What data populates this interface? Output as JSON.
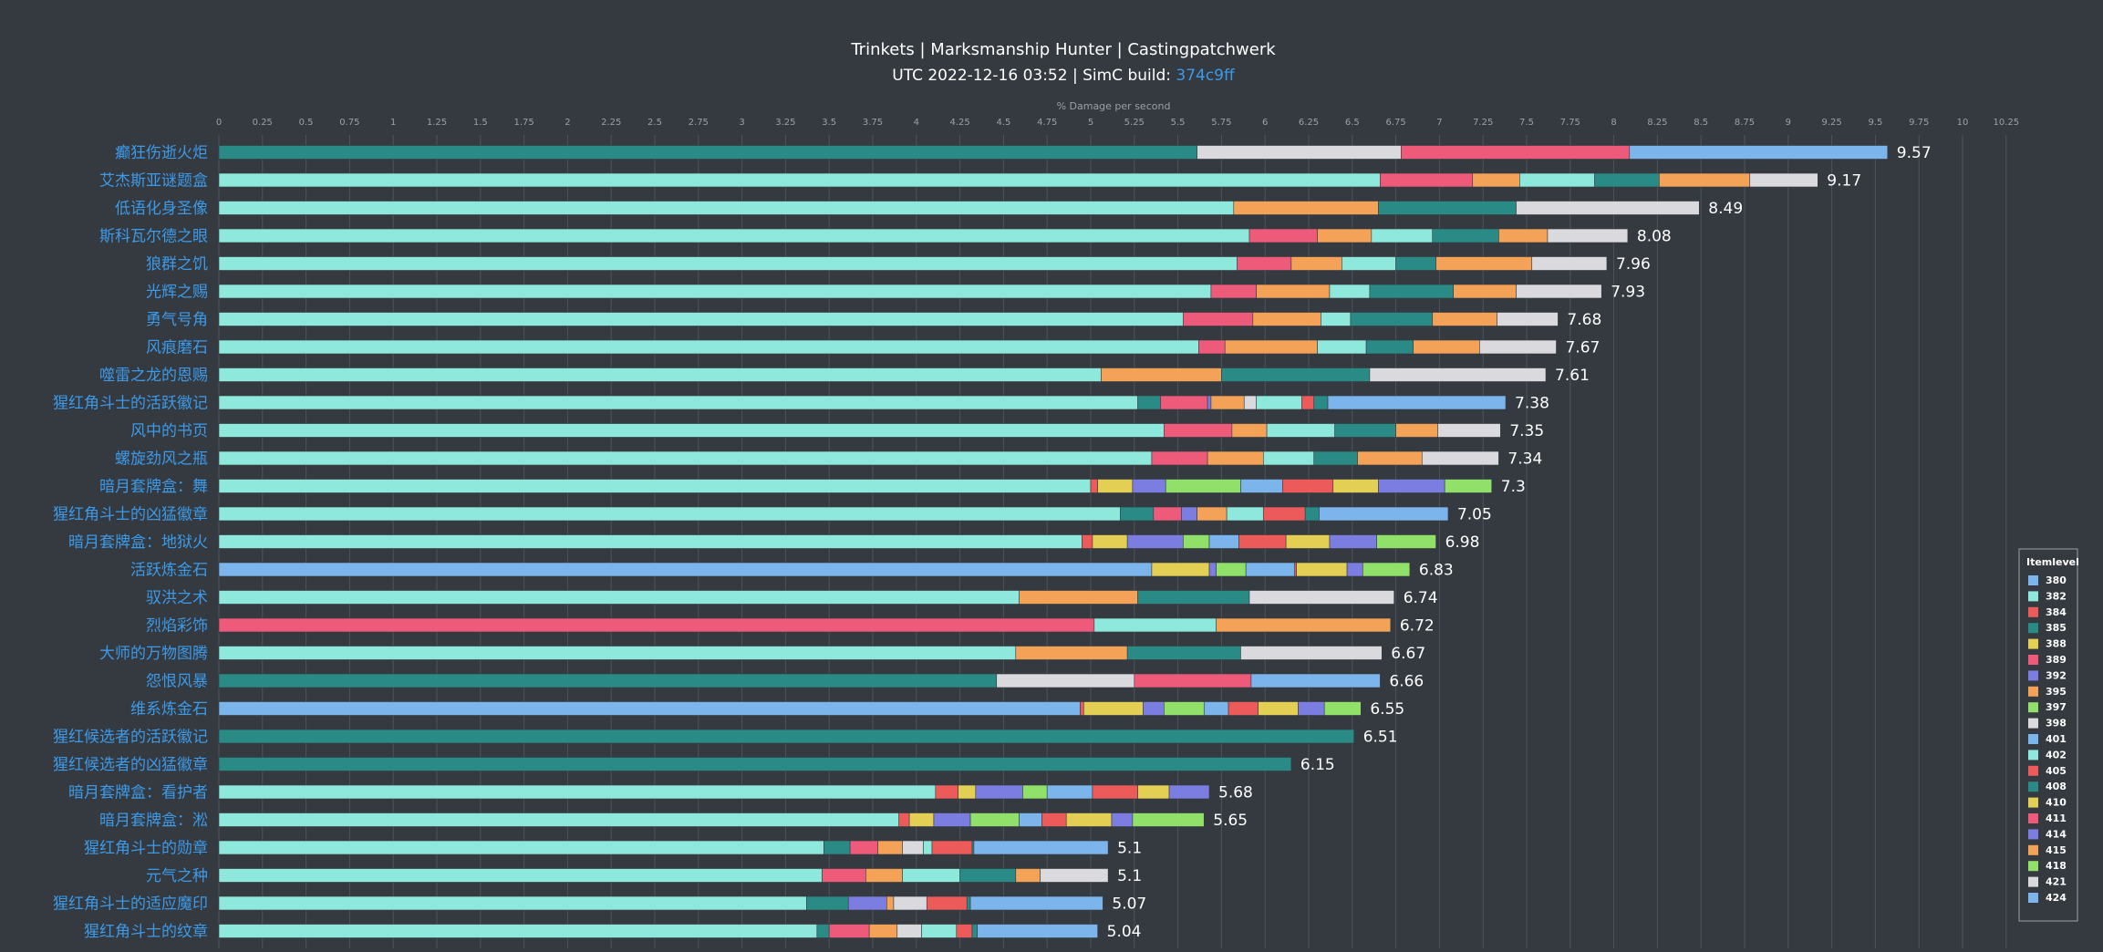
{
  "chart_data": {
    "type": "bar",
    "orientation": "horizontal",
    "stacked": true,
    "title": "Trinkets | Marksmanship Hunter | Castingpatchwerk",
    "subtitle_prefix": "UTC 2022-12-16 03:52 | SimC build: ",
    "subtitle_link": "374c9ff",
    "xlabel": "% Damage per second",
    "xlim": [
      0,
      10.25
    ],
    "xtick_step": 0.25,
    "grid": true,
    "legend_title": "Itemlevel",
    "legend_position": "right",
    "legend": [
      {
        "name": "380",
        "color": "#7cb5ec"
      },
      {
        "name": "382",
        "color": "#8ee8dc"
      },
      {
        "name": "384",
        "color": "#ec5a5a"
      },
      {
        "name": "385",
        "color": "#2a8a86"
      },
      {
        "name": "388",
        "color": "#e4cf55"
      },
      {
        "name": "389",
        "color": "#ee5a7a"
      },
      {
        "name": "392",
        "color": "#7b7de0"
      },
      {
        "name": "395",
        "color": "#f4a257"
      },
      {
        "name": "397",
        "color": "#90e06a"
      },
      {
        "name": "398",
        "color": "#d9d9de"
      },
      {
        "name": "401",
        "color": "#7cb5ec"
      },
      {
        "name": "402",
        "color": "#8ee8dc"
      },
      {
        "name": "405",
        "color": "#ec5a5a"
      },
      {
        "name": "408",
        "color": "#2a8a86"
      },
      {
        "name": "410",
        "color": "#e4cf55"
      },
      {
        "name": "411",
        "color": "#ee5a7a"
      },
      {
        "name": "414",
        "color": "#7b7de0"
      },
      {
        "name": "415",
        "color": "#f4a257"
      },
      {
        "name": "418",
        "color": "#90e06a"
      },
      {
        "name": "421",
        "color": "#d9d9de"
      },
      {
        "name": "424",
        "color": "#7cb5ec"
      }
    ],
    "categories": [
      "癫狂伤逝火炬",
      "艾杰斯亚谜题盒",
      "低语化身圣像",
      "斯科瓦尔德之眼",
      "狼群之饥",
      "光辉之赐",
      "勇气号角",
      "风痕磨石",
      "噬雷之龙的恩赐",
      "猩红角斗士的活跃徽记",
      "风中的书页",
      "螺旋劲风之瓶",
      "暗月套牌盒：舞",
      "猩红角斗士的凶猛徽章",
      "暗月套牌盒：地狱火",
      "活跃炼金石",
      "驭洪之术",
      "烈焰彩饰",
      "大师的万物图腾",
      "怨恨风暴",
      "维系炼金石",
      "猩红候选者的活跃徽记",
      "猩红候选者的凶猛徽章",
      "暗月套牌盒：看护者",
      "暗月套牌盒：淞",
      "猩红角斗士的勋章",
      "元气之种",
      "猩红角斗士的适应魔印",
      "猩红角斗士的纹章"
    ],
    "totals": [
      9.57,
      9.17,
      8.49,
      8.08,
      7.96,
      7.93,
      7.68,
      7.67,
      7.61,
      7.38,
      7.35,
      7.34,
      7.3,
      7.05,
      6.98,
      6.83,
      6.74,
      6.72,
      6.67,
      6.66,
      6.55,
      6.51,
      6.15,
      5.68,
      5.65,
      5.1,
      5.1,
      5.07,
      5.04
    ],
    "segments": [
      [
        [
          "385",
          5.61
        ],
        [
          "398",
          1.17
        ],
        [
          "389",
          1.31
        ],
        [
          "401",
          1.48
        ]
      ],
      [
        [
          "382",
          6.66
        ],
        [
          "389",
          0.53
        ],
        [
          "395",
          0.27
        ],
        [
          "402",
          0.43
        ],
        [
          "408",
          0.37
        ],
        [
          "415",
          0.52
        ],
        [
          "421",
          0.39
        ]
      ],
      [
        [
          "382",
          5.82
        ],
        [
          "395",
          0.83
        ],
        [
          "408",
          0.79
        ],
        [
          "421",
          1.05
        ]
      ],
      [
        [
          "382",
          5.91
        ],
        [
          "389",
          0.39
        ],
        [
          "395",
          0.31
        ],
        [
          "402",
          0.35
        ],
        [
          "408",
          0.38
        ],
        [
          "415",
          0.28
        ],
        [
          "421",
          0.46
        ]
      ],
      [
        [
          "382",
          5.84
        ],
        [
          "389",
          0.31
        ],
        [
          "395",
          0.29
        ],
        [
          "402",
          0.31
        ],
        [
          "408",
          0.23
        ],
        [
          "415",
          0.55
        ],
        [
          "421",
          0.43
        ]
      ],
      [
        [
          "382",
          5.69
        ],
        [
          "389",
          0.26
        ],
        [
          "395",
          0.42
        ],
        [
          "402",
          0.23
        ],
        [
          "408",
          0.48
        ],
        [
          "415",
          0.36
        ],
        [
          "421",
          0.49
        ]
      ],
      [
        [
          "382",
          5.53
        ],
        [
          "389",
          0.4
        ],
        [
          "395",
          0.39
        ],
        [
          "402",
          0.17
        ],
        [
          "408",
          0.47
        ],
        [
          "415",
          0.37
        ],
        [
          "421",
          0.35
        ]
      ],
      [
        [
          "382",
          5.62
        ],
        [
          "389",
          0.15
        ],
        [
          "395",
          0.53
        ],
        [
          "402",
          0.28
        ],
        [
          "408",
          0.27
        ],
        [
          "415",
          0.38
        ],
        [
          "421",
          0.44
        ]
      ],
      [
        [
          "382",
          5.06
        ],
        [
          "395",
          0.69
        ],
        [
          "408",
          0.85
        ],
        [
          "421",
          1.01
        ]
      ],
      [
        [
          "382",
          5.27
        ],
        [
          "385",
          0.13
        ],
        [
          "389",
          0.27
        ],
        [
          "392",
          0.02
        ],
        [
          "395",
          0.19
        ],
        [
          "398",
          0.07
        ],
        [
          "402",
          0.26
        ],
        [
          "405",
          0.07
        ],
        [
          "408",
          0.08
        ],
        [
          "424",
          1.02
        ]
      ],
      [
        [
          "382",
          5.42
        ],
        [
          "389",
          0.39
        ],
        [
          "395",
          0.2
        ],
        [
          "402",
          0.39
        ],
        [
          "408",
          0.35
        ],
        [
          "415",
          0.24
        ],
        [
          "421",
          0.36
        ]
      ],
      [
        [
          "382",
          5.35
        ],
        [
          "389",
          0.32
        ],
        [
          "395",
          0.32
        ],
        [
          "402",
          0.29
        ],
        [
          "408",
          0.25
        ],
        [
          "415",
          0.37
        ],
        [
          "421",
          0.44
        ]
      ],
      [
        [
          "382",
          5.0
        ],
        [
          "384",
          0.04
        ],
        [
          "388",
          0.2
        ],
        [
          "392",
          0.19
        ],
        [
          "397",
          0.43
        ],
        [
          "401",
          0.24
        ],
        [
          "405",
          0.29
        ],
        [
          "410",
          0.26
        ],
        [
          "414",
          0.38
        ],
        [
          "418",
          0.27
        ]
      ],
      [
        [
          "382",
          5.17
        ],
        [
          "385",
          0.19
        ],
        [
          "389",
          0.16
        ],
        [
          "392",
          0.09
        ],
        [
          "395",
          0.17
        ],
        [
          "402",
          0.21
        ],
        [
          "405",
          0.24
        ],
        [
          "408",
          0.08
        ],
        [
          "424",
          0.74
        ]
      ],
      [
        [
          "382",
          4.95
        ],
        [
          "384",
          0.06
        ],
        [
          "388",
          0.2
        ],
        [
          "392",
          0.32
        ],
        [
          "397",
          0.15
        ],
        [
          "401",
          0.17
        ],
        [
          "405",
          0.27
        ],
        [
          "410",
          0.25
        ],
        [
          "414",
          0.27
        ],
        [
          "418",
          0.34
        ]
      ],
      [
        [
          "380",
          5.35
        ],
        [
          "388",
          0.33
        ],
        [
          "392",
          0.04
        ],
        [
          "397",
          0.17
        ],
        [
          "401",
          0.28
        ],
        [
          "405",
          0.01
        ],
        [
          "410",
          0.29
        ],
        [
          "414",
          0.09
        ],
        [
          "418",
          0.27
        ]
      ],
      [
        [
          "382",
          4.59
        ],
        [
          "395",
          0.68
        ],
        [
          "408",
          0.64
        ],
        [
          "421",
          0.83
        ]
      ],
      [
        [
          "389",
          5.02
        ],
        [
          "402",
          0.7
        ],
        [
          "415",
          1.0
        ]
      ],
      [
        [
          "382",
          4.57
        ],
        [
          "395",
          0.64
        ],
        [
          "408",
          0.65
        ],
        [
          "421",
          0.81
        ]
      ],
      [
        [
          "385",
          4.46
        ],
        [
          "398",
          0.79
        ],
        [
          "411",
          0.67
        ],
        [
          "424",
          0.74
        ]
      ],
      [
        [
          "380",
          4.94
        ],
        [
          "384",
          0.02
        ],
        [
          "388",
          0.34
        ],
        [
          "392",
          0.12
        ],
        [
          "397",
          0.23
        ],
        [
          "401",
          0.14
        ],
        [
          "405",
          0.17
        ],
        [
          "410",
          0.23
        ],
        [
          "414",
          0.15
        ],
        [
          "418",
          0.21
        ]
      ],
      [
        [
          "385",
          6.51
        ]
      ],
      [
        [
          "385",
          6.15
        ]
      ],
      [
        [
          "382",
          4.11
        ],
        [
          "384",
          0.13
        ],
        [
          "388",
          0.1
        ],
        [
          "392",
          0.27
        ],
        [
          "397",
          0.14
        ],
        [
          "401",
          0.26
        ],
        [
          "405",
          0.26
        ],
        [
          "410",
          0.18
        ],
        [
          "414",
          0.23
        ]
      ],
      [
        [
          "382",
          3.9
        ],
        [
          "384",
          0.06
        ],
        [
          "388",
          0.14
        ],
        [
          "392",
          0.21
        ],
        [
          "397",
          0.28
        ],
        [
          "401",
          0.13
        ],
        [
          "405",
          0.14
        ],
        [
          "410",
          0.26
        ],
        [
          "414",
          0.12
        ],
        [
          "418",
          0.41
        ]
      ],
      [
        [
          "382",
          3.47
        ],
        [
          "385",
          0.15
        ],
        [
          "389",
          0.16
        ],
        [
          "395",
          0.14
        ],
        [
          "398",
          0.12
        ],
        [
          "402",
          0.05
        ],
        [
          "405",
          0.23
        ],
        [
          "408",
          0.01
        ],
        [
          "424",
          0.77
        ]
      ],
      [
        [
          "382",
          3.46
        ],
        [
          "389",
          0.25
        ],
        [
          "395",
          0.21
        ],
        [
          "402",
          0.33
        ],
        [
          "408",
          0.32
        ],
        [
          "415",
          0.14
        ],
        [
          "421",
          0.39
        ]
      ],
      [
        [
          "382",
          3.37
        ],
        [
          "385",
          0.24
        ],
        [
          "392",
          0.22
        ],
        [
          "395",
          0.04
        ],
        [
          "398",
          0.19
        ],
        [
          "405",
          0.23
        ],
        [
          "408",
          0.02
        ],
        [
          "424",
          0.76
        ]
      ],
      [
        [
          "382",
          3.43
        ],
        [
          "385",
          0.07
        ],
        [
          "389",
          0.23
        ],
        [
          "395",
          0.16
        ],
        [
          "398",
          0.14
        ],
        [
          "402",
          0.2
        ],
        [
          "405",
          0.09
        ],
        [
          "408",
          0.03
        ],
        [
          "424",
          0.69
        ]
      ]
    ]
  }
}
